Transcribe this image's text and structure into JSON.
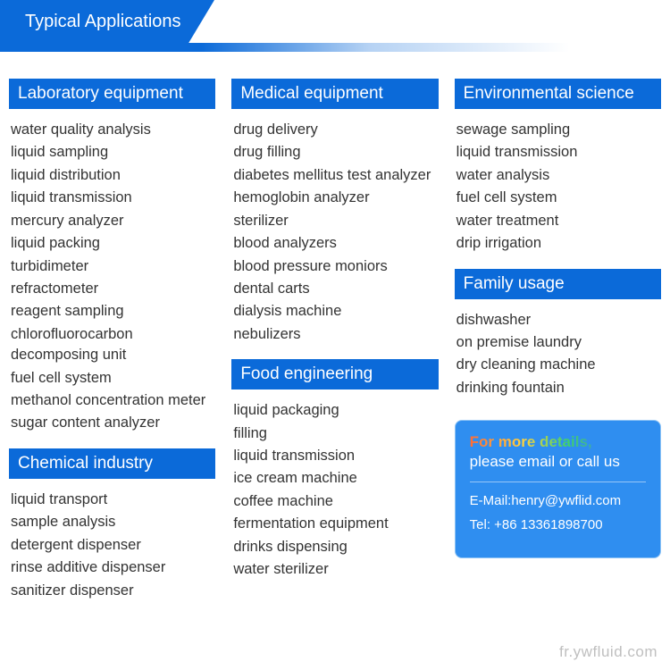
{
  "banner": {
    "title": "Typical Applications"
  },
  "columns": [
    {
      "sections": [
        {
          "header": "Laboratory equipment",
          "items": [
            "water quality analysis",
            "liquid sampling",
            "liquid distribution",
            "liquid transmission",
            "mercury analyzer",
            "liquid packing",
            "turbidimeter",
            "refractometer",
            "reagent sampling",
            "chlorofluorocarbon decomposing unit",
            "fuel cell system",
            "methanol concentration meter",
            "sugar content analyzer"
          ]
        },
        {
          "header": "Chemical industry",
          "items": [
            "liquid transport",
            "sample analysis",
            "detergent dispenser",
            "rinse additive dispenser",
            "sanitizer dispenser"
          ]
        }
      ]
    },
    {
      "sections": [
        {
          "header": "Medical equipment",
          "items": [
            "drug delivery",
            "drug filling",
            "diabetes mellitus test analyzer",
            "hemoglobin analyzer",
            "sterilizer",
            "blood analyzers",
            "blood pressure moniors",
            "dental carts",
            "dialysis machine",
            "nebulizers"
          ]
        },
        {
          "header": "Food engineering",
          "items": [
            "liquid packaging",
            "filling",
            "liquid transmission",
            "ice cream machine",
            "coffee machine",
            "fermentation equipment",
            "drinks dispensing",
            "water sterilizer"
          ]
        }
      ]
    },
    {
      "sections": [
        {
          "header": "Environmental science",
          "items": [
            "sewage sampling",
            "liquid transmission",
            "water analysis",
            "fuel cell system",
            "water treatment",
            "drip irrigation"
          ]
        },
        {
          "header": "Family usage",
          "items": [
            "dishwasher",
            "on premise laundry",
            "dry cleaning machine",
            "drinking fountain"
          ]
        }
      ],
      "contact": {
        "line1": "For more details,",
        "line2": "please email or call us",
        "email": "E-Mail:henry@ywflid.com",
        "tel": "Tel: +86 13361898700"
      }
    }
  ],
  "watermark": "fr.ywfluid.com",
  "colors": {
    "accent": "#0b6ad9",
    "contact_bg": "#2f8ef0",
    "text": "#333333",
    "watermark": "#bfbfbf"
  }
}
